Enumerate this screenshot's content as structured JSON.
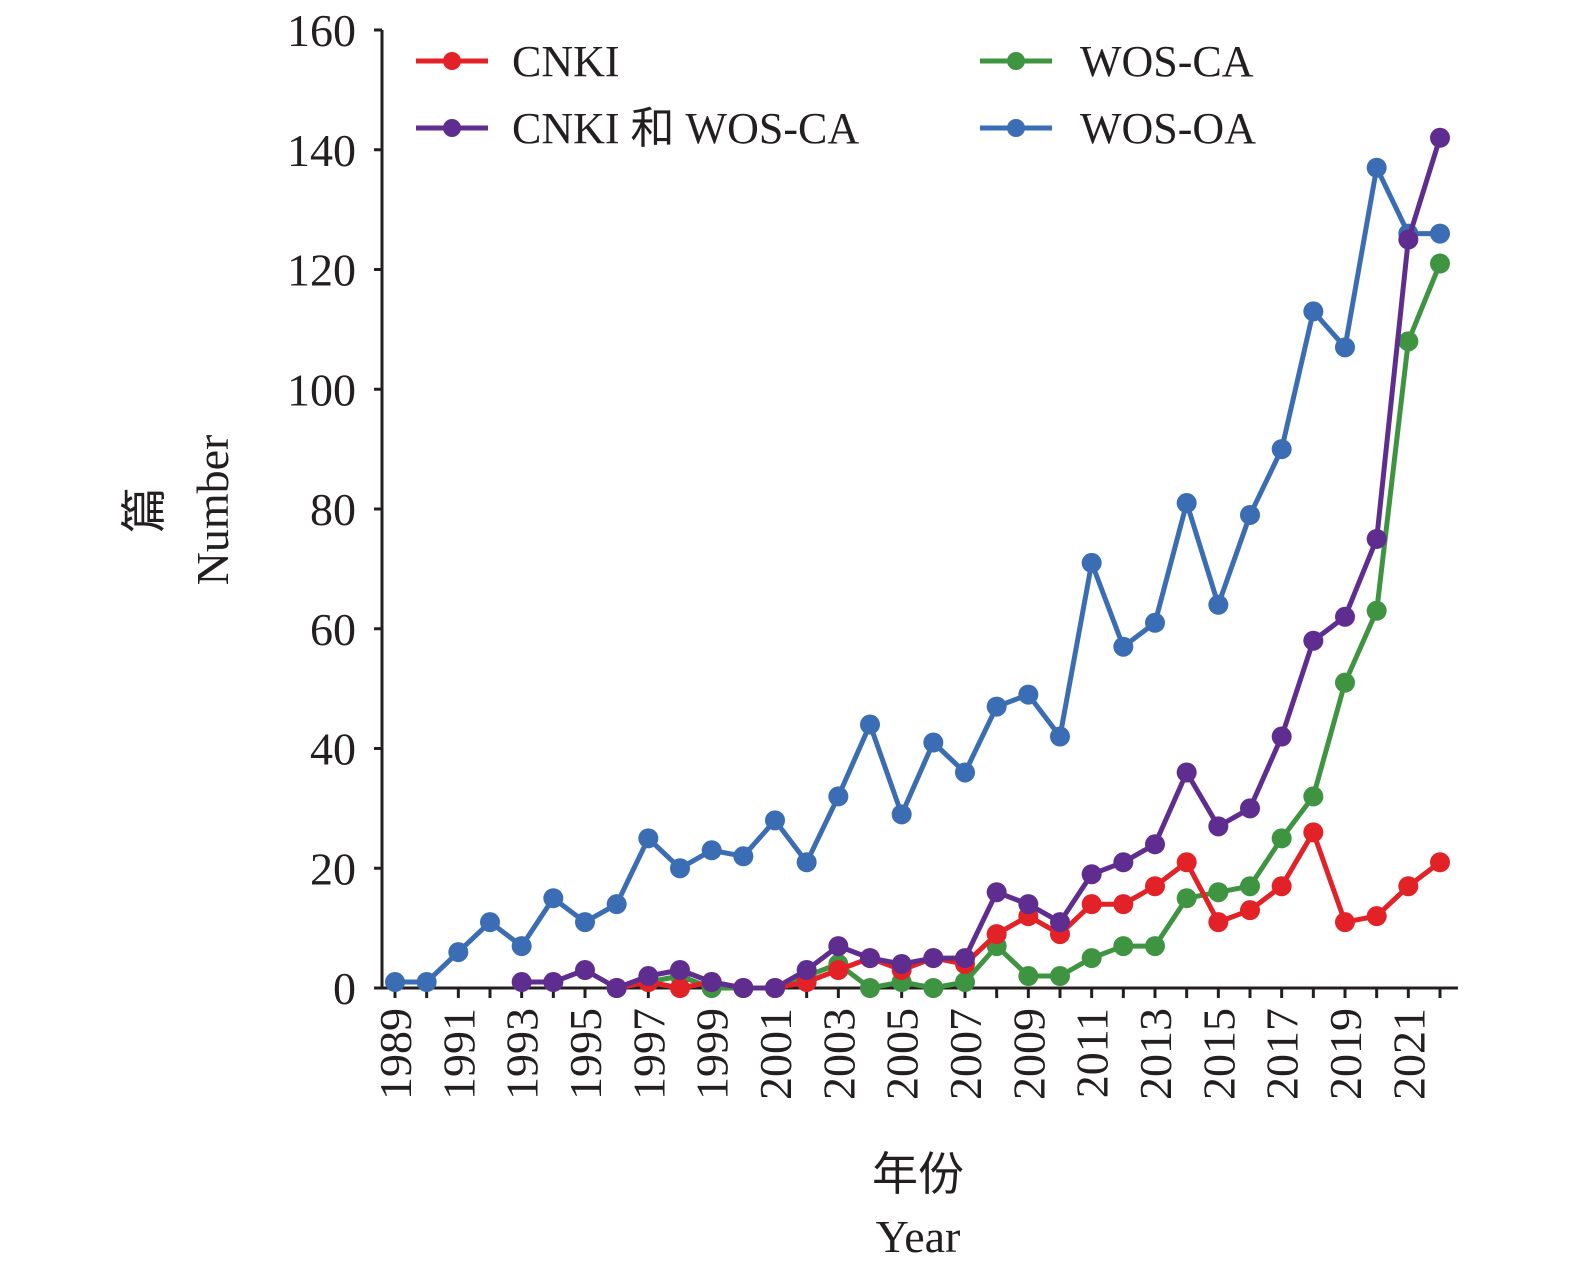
{
  "chart_data": {
    "type": "line",
    "title": "",
    "xlabel_cn": "年份",
    "xlabel_en": "Year",
    "ylabel_cn": "篇",
    "ylabel_en": "Number",
    "ylim": [
      0,
      160
    ],
    "yticks": [
      0,
      20,
      40,
      60,
      80,
      100,
      120,
      140,
      160
    ],
    "xlim": [
      1989,
      2022
    ],
    "xticks": [
      1989,
      1991,
      1993,
      1995,
      1997,
      1999,
      2001,
      2003,
      2005,
      2007,
      2009,
      2011,
      2013,
      2015,
      2017,
      2019,
      2021
    ],
    "grid": false,
    "legend_position": "top-left",
    "series": [
      {
        "name": "WOS-OA",
        "color": "#3a6db3",
        "x": [
          1989,
          1990,
          1991,
          1992,
          1993,
          1994,
          1995,
          1996,
          1997,
          1998,
          1999,
          2000,
          2001,
          2002,
          2003,
          2004,
          2005,
          2006,
          2007,
          2008,
          2009,
          2010,
          2011,
          2012,
          2013,
          2014,
          2015,
          2016,
          2017,
          2018,
          2019,
          2020,
          2021,
          2022
        ],
        "values": [
          1,
          1,
          6,
          11,
          7,
          15,
          11,
          14,
          25,
          20,
          23,
          22,
          28,
          21,
          32,
          44,
          29,
          41,
          36,
          47,
          49,
          42,
          71,
          57,
          61,
          81,
          64,
          79,
          90,
          113,
          107,
          137,
          126,
          126
        ]
      },
      {
        "name": "WOS-CA",
        "color": "#3f9441",
        "x": [
          1996,
          1997,
          1998,
          1999,
          2000,
          2001,
          2002,
          2003,
          2004,
          2005,
          2006,
          2007,
          2008,
          2009,
          2010,
          2011,
          2012,
          2013,
          2014,
          2015,
          2016,
          2017,
          2018,
          2019,
          2020,
          2021,
          2022
        ],
        "values": [
          0,
          1,
          2,
          0,
          0,
          0,
          2,
          4,
          0,
          1,
          0,
          1,
          7,
          2,
          2,
          5,
          7,
          7,
          15,
          16,
          17,
          25,
          32,
          51,
          63,
          108,
          121
        ]
      },
      {
        "name": "CNKI",
        "color": "#e32227",
        "x": [
          1996,
          1997,
          1998,
          1999,
          2000,
          2001,
          2002,
          2003,
          2004,
          2005,
          2006,
          2007,
          2008,
          2009,
          2010,
          2011,
          2012,
          2013,
          2014,
          2015,
          2016,
          2017,
          2018,
          2019,
          2020,
          2021,
          2022
        ],
        "values": [
          0,
          1,
          0,
          1,
          0,
          0,
          1,
          3,
          5,
          3,
          5,
          4,
          9,
          12,
          9,
          14,
          14,
          17,
          21,
          11,
          13,
          17,
          26,
          11,
          12,
          17,
          21
        ]
      },
      {
        "name": "CNKI 和 WOS-CA",
        "color": "#5f2d8f",
        "x": [
          1993,
          1994,
          1995,
          1996,
          1997,
          1998,
          1999,
          2000,
          2001,
          2002,
          2003,
          2004,
          2005,
          2006,
          2007,
          2008,
          2009,
          2010,
          2011,
          2012,
          2013,
          2014,
          2015,
          2016,
          2017,
          2018,
          2019,
          2020,
          2021,
          2022
        ],
        "values": [
          1,
          1,
          3,
          0,
          2,
          3,
          1,
          0,
          0,
          3,
          7,
          5,
          4,
          5,
          5,
          16,
          14,
          11,
          19,
          21,
          24,
          36,
          27,
          30,
          42,
          58,
          62,
          75,
          125,
          142
        ]
      }
    ],
    "legend": [
      {
        "label": "CNKI",
        "series": "CNKI",
        "color": "#e32227"
      },
      {
        "label": "WOS-CA",
        "series": "WOS-CA",
        "color": "#3f9441"
      },
      {
        "label": "CNKI 和 WOS-CA",
        "series": "CNKI 和 WOS-CA",
        "color": "#5f2d8f"
      },
      {
        "label": "WOS-OA",
        "series": "WOS-OA",
        "color": "#3a6db3"
      }
    ]
  }
}
